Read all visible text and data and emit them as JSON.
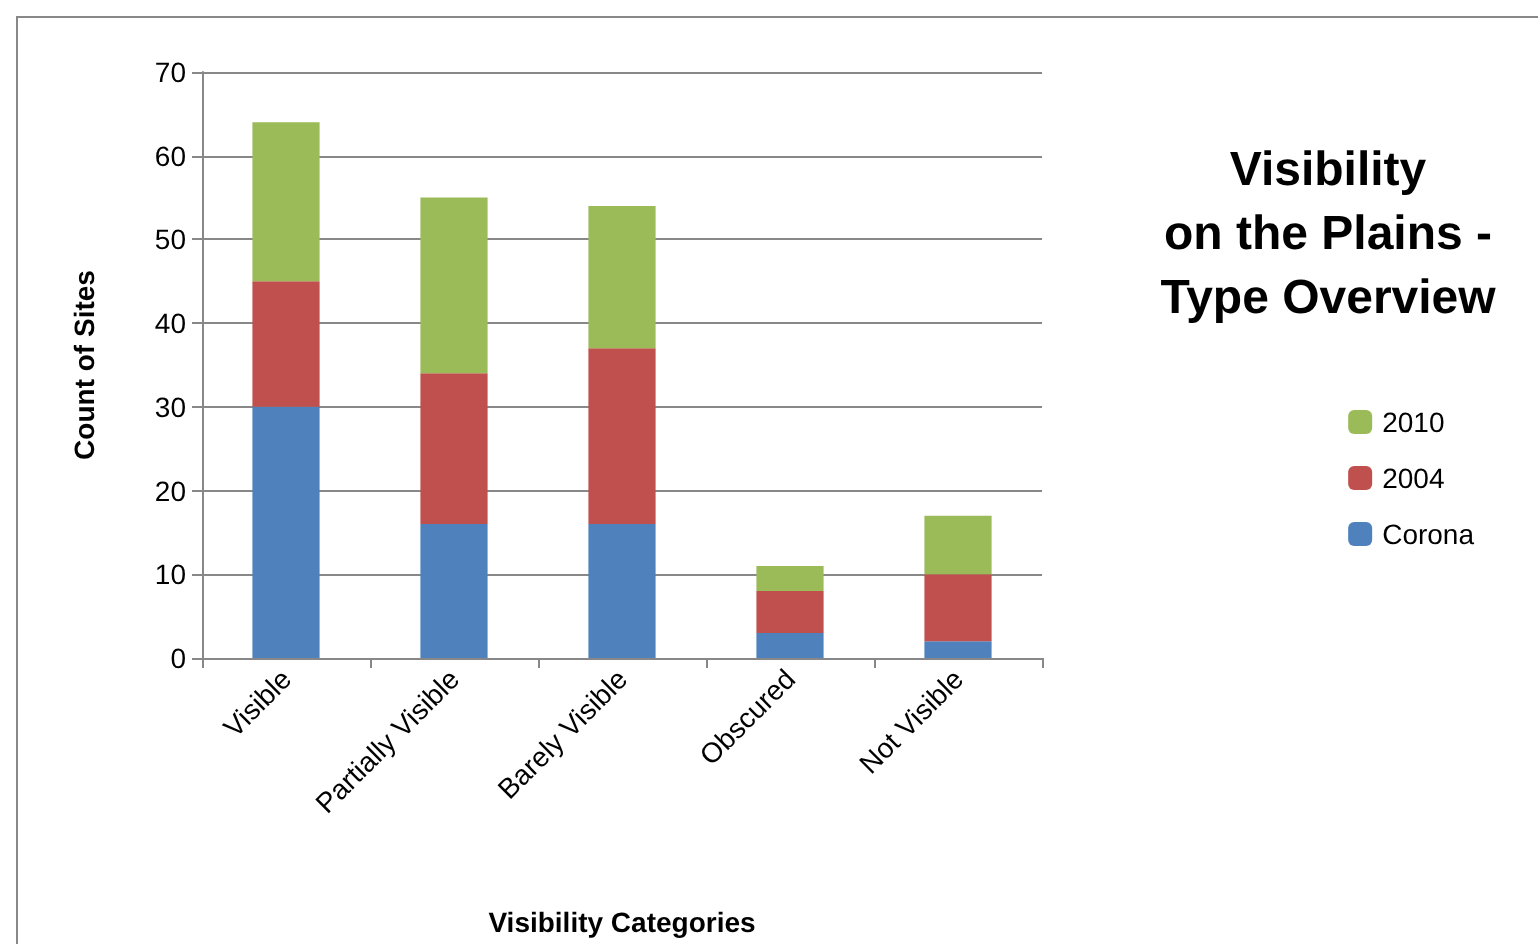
{
  "chart_data": {
    "type": "bar",
    "title": "Visibility\non the Plains -\nType Overview",
    "xlabel": "Visibility Categories",
    "ylabel": "Count of Sites",
    "categories": [
      "Visible",
      "Partially Visible",
      "Barely Visible",
      "Obscured",
      "Not Visible"
    ],
    "series": [
      {
        "name": "Corona",
        "color": "#4f81bd",
        "values": [
          30,
          16,
          16,
          3,
          2
        ]
      },
      {
        "name": "2004",
        "color": "#c0504d",
        "values": [
          15,
          18,
          21,
          5,
          8
        ]
      },
      {
        "name": "2010",
        "color": "#9bbb59",
        "values": [
          19,
          21,
          17,
          3,
          7
        ]
      }
    ],
    "stacked": true,
    "ylim": [
      0,
      70
    ],
    "yticks": [
      0,
      10,
      20,
      30,
      40,
      50,
      60,
      70
    ],
    "grid": "y",
    "legend": "right"
  }
}
